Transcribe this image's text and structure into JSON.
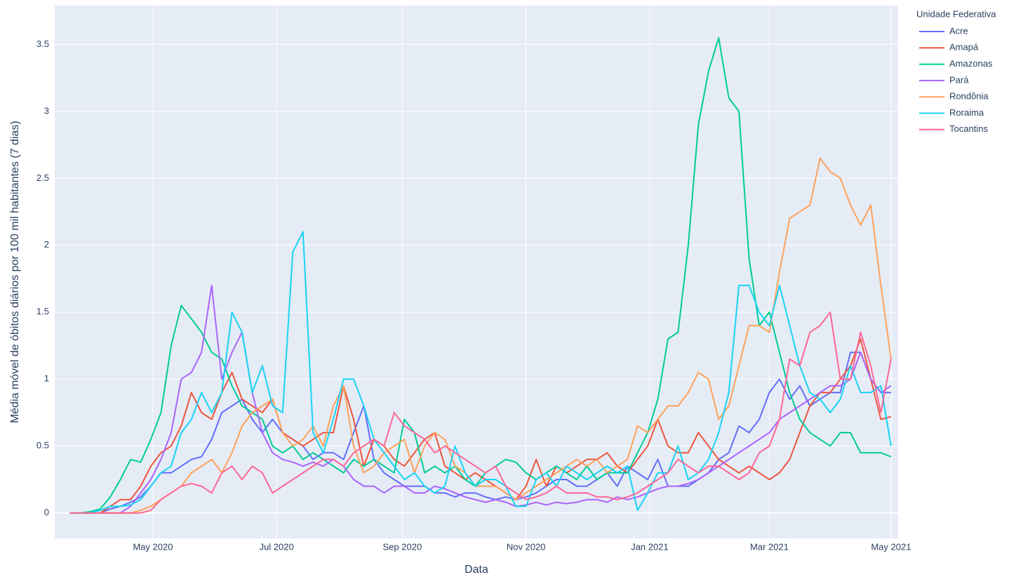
{
  "chart_data": {
    "type": "line",
    "x_label": "Data",
    "y_label": "Média móvel de óbitos diários por 100 mil habitantes (7 dias)",
    "legend_title": "Unidade Federativa",
    "legend": "right",
    "grid": true,
    "xlim": [
      72.6,
      488.5
    ],
    "xticks": [
      {
        "value": 121,
        "label": "May 2020"
      },
      {
        "value": 182,
        "label": "Jul 2020"
      },
      {
        "value": 244,
        "label": "Sep 2020"
      },
      {
        "value": 305,
        "label": "Nov 2020"
      },
      {
        "value": 366,
        "label": "Jan 2021"
      },
      {
        "value": 425,
        "label": "Mar 2021"
      },
      {
        "value": 485,
        "label": "May 2021"
      }
    ],
    "ylim": [
      -0.19,
      3.79
    ],
    "yticks": [
      0,
      0.5,
      1,
      1.5,
      2,
      2.5,
      3,
      3.5
    ],
    "x": [
      80,
      85,
      90,
      95,
      100,
      105,
      110,
      115,
      120,
      125,
      130,
      135,
      140,
      145,
      150,
      155,
      160,
      165,
      170,
      175,
      180,
      185,
      190,
      195,
      200,
      205,
      210,
      215,
      220,
      225,
      230,
      235,
      240,
      245,
      250,
      255,
      260,
      265,
      270,
      275,
      280,
      285,
      290,
      295,
      300,
      305,
      310,
      315,
      320,
      325,
      330,
      335,
      340,
      345,
      350,
      355,
      360,
      365,
      370,
      375,
      380,
      385,
      390,
      395,
      400,
      405,
      410,
      415,
      420,
      425,
      430,
      435,
      440,
      445,
      450,
      455,
      460,
      465,
      470,
      475,
      480,
      485
    ],
    "series": [
      {
        "name": "Acre",
        "color": "#636efa",
        "values": [
          0,
          0,
          0,
          0,
          0.03,
          0.05,
          0.08,
          0.12,
          0.2,
          0.3,
          0.3,
          0.35,
          0.4,
          0.42,
          0.55,
          0.75,
          0.8,
          0.85,
          0.7,
          0.6,
          0.7,
          0.6,
          0.55,
          0.5,
          0.4,
          0.45,
          0.45,
          0.4,
          0.6,
          0.8,
          0.4,
          0.3,
          0.25,
          0.2,
          0.2,
          0.2,
          0.15,
          0.15,
          0.12,
          0.15,
          0.15,
          0.12,
          0.1,
          0.12,
          0.1,
          0.12,
          0.15,
          0.2,
          0.25,
          0.25,
          0.2,
          0.2,
          0.25,
          0.3,
          0.2,
          0.35,
          0.3,
          0.25,
          0.4,
          0.2,
          0.2,
          0.2,
          0.25,
          0.3,
          0.4,
          0.45,
          0.65,
          0.6,
          0.7,
          0.9,
          1.0,
          0.85,
          0.95,
          0.8,
          0.85,
          0.9,
          0.9,
          1.2,
          1.2,
          1.0,
          0.9,
          0.9
        ]
      },
      {
        "name": "Amapá",
        "color": "#EF553B",
        "values": [
          0,
          0,
          0,
          0,
          0.05,
          0.1,
          0.1,
          0.2,
          0.35,
          0.45,
          0.5,
          0.65,
          0.9,
          0.75,
          0.7,
          0.9,
          1.05,
          0.85,
          0.8,
          0.75,
          0.85,
          0.6,
          0.55,
          0.5,
          0.55,
          0.6,
          0.6,
          0.95,
          0.7,
          0.35,
          0.55,
          0.5,
          0.4,
          0.35,
          0.45,
          0.55,
          0.6,
          0.35,
          0.3,
          0.25,
          0.3,
          0.25,
          0.2,
          0.15,
          0.1,
          0.2,
          0.4,
          0.2,
          0.35,
          0.3,
          0.35,
          0.4,
          0.4,
          0.45,
          0.35,
          0.3,
          0.4,
          0.5,
          0.7,
          0.5,
          0.45,
          0.45,
          0.6,
          0.5,
          0.4,
          0.35,
          0.3,
          0.35,
          0.3,
          0.25,
          0.3,
          0.4,
          0.6,
          0.8,
          0.9,
          0.9,
          1.0,
          1.1,
          1.3,
          1.0,
          0.7,
          0.72
        ]
      },
      {
        "name": "Amazonas",
        "color": "#00cc96",
        "values": [
          0,
          0,
          0.01,
          0.03,
          0.12,
          0.25,
          0.4,
          0.38,
          0.55,
          0.75,
          1.25,
          1.55,
          1.45,
          1.35,
          1.2,
          1.15,
          0.95,
          0.8,
          0.75,
          0.7,
          0.5,
          0.45,
          0.5,
          0.4,
          0.45,
          0.4,
          0.35,
          0.3,
          0.4,
          0.35,
          0.4,
          0.35,
          0.3,
          0.7,
          0.6,
          0.3,
          0.35,
          0.3,
          0.35,
          0.25,
          0.2,
          0.3,
          0.35,
          0.4,
          0.38,
          0.3,
          0.25,
          0.3,
          0.35,
          0.3,
          0.25,
          0.35,
          0.25,
          0.3,
          0.3,
          0.3,
          0.45,
          0.6,
          0.85,
          1.3,
          1.35,
          2.0,
          2.9,
          3.3,
          3.55,
          3.1,
          3.0,
          1.9,
          1.4,
          1.5,
          1.2,
          0.9,
          0.7,
          0.6,
          0.55,
          0.5,
          0.6,
          0.6,
          0.45,
          0.45,
          0.45,
          0.42
        ]
      },
      {
        "name": "Pará",
        "color": "#ab63fa",
        "values": [
          0,
          0,
          0,
          0,
          0,
          0,
          0.05,
          0.15,
          0.25,
          0.4,
          0.6,
          1.0,
          1.05,
          1.2,
          1.7,
          1.0,
          1.2,
          1.35,
          0.9,
          0.6,
          0.45,
          0.4,
          0.38,
          0.35,
          0.38,
          0.35,
          0.4,
          0.35,
          0.25,
          0.2,
          0.2,
          0.15,
          0.2,
          0.2,
          0.15,
          0.15,
          0.2,
          0.18,
          0.15,
          0.12,
          0.1,
          0.08,
          0.1,
          0.08,
          0.05,
          0.06,
          0.08,
          0.06,
          0.08,
          0.07,
          0.08,
          0.1,
          0.1,
          0.08,
          0.12,
          0.1,
          0.12,
          0.15,
          0.18,
          0.2,
          0.2,
          0.22,
          0.25,
          0.3,
          0.35,
          0.4,
          0.45,
          0.5,
          0.55,
          0.6,
          0.7,
          0.75,
          0.8,
          0.85,
          0.9,
          0.95,
          0.95,
          1.0,
          1.2,
          1.0,
          0.9,
          0.95
        ]
      },
      {
        "name": "Rondônia",
        "color": "#FFA15A",
        "values": [
          0,
          0,
          0,
          0,
          0,
          0,
          0,
          0.02,
          0.05,
          0.1,
          0.15,
          0.2,
          0.3,
          0.35,
          0.4,
          0.3,
          0.45,
          0.65,
          0.75,
          0.8,
          0.85,
          0.6,
          0.5,
          0.55,
          0.65,
          0.5,
          0.8,
          0.95,
          0.5,
          0.3,
          0.35,
          0.45,
          0.5,
          0.55,
          0.3,
          0.5,
          0.6,
          0.55,
          0.35,
          0.3,
          0.2,
          0.2,
          0.2,
          0.15,
          0.1,
          0.15,
          0.2,
          0.25,
          0.3,
          0.35,
          0.4,
          0.35,
          0.4,
          0.3,
          0.35,
          0.4,
          0.65,
          0.6,
          0.7,
          0.8,
          0.8,
          0.9,
          1.05,
          1.0,
          0.7,
          0.8,
          1.1,
          1.4,
          1.4,
          1.35,
          1.8,
          2.2,
          2.25,
          2.3,
          2.65,
          2.55,
          2.5,
          2.3,
          2.15,
          2.3,
          1.7,
          1.15
        ]
      },
      {
        "name": "Roraima",
        "color": "#19d3f3",
        "values": [
          0,
          0,
          0,
          0.02,
          0.05,
          0.05,
          0.06,
          0.1,
          0.2,
          0.3,
          0.35,
          0.6,
          0.7,
          0.9,
          0.75,
          0.9,
          1.5,
          1.35,
          0.9,
          1.1,
          0.8,
          0.75,
          1.95,
          2.1,
          0.6,
          0.45,
          0.7,
          1.0,
          1.0,
          0.8,
          0.55,
          0.45,
          0.35,
          0.25,
          0.3,
          0.2,
          0.15,
          0.2,
          0.5,
          0.3,
          0.2,
          0.25,
          0.25,
          0.2,
          0.05,
          0.05,
          0.25,
          0.3,
          0.2,
          0.35,
          0.3,
          0.25,
          0.3,
          0.35,
          0.3,
          0.35,
          0.02,
          0.15,
          0.3,
          0.3,
          0.5,
          0.25,
          0.3,
          0.4,
          0.6,
          0.9,
          1.7,
          1.7,
          1.5,
          1.4,
          1.7,
          1.4,
          1.1,
          0.9,
          0.85,
          0.75,
          0.85,
          1.1,
          0.9,
          0.9,
          0.95,
          0.5
        ]
      },
      {
        "name": "Tocantins",
        "color": "#FF6692",
        "values": [
          0,
          0,
          0,
          0,
          0,
          0,
          0,
          0,
          0.02,
          0.1,
          0.15,
          0.2,
          0.22,
          0.2,
          0.15,
          0.3,
          0.35,
          0.25,
          0.35,
          0.3,
          0.15,
          0.2,
          0.25,
          0.3,
          0.35,
          0.4,
          0.4,
          0.35,
          0.45,
          0.5,
          0.55,
          0.5,
          0.75,
          0.65,
          0.6,
          0.55,
          0.45,
          0.5,
          0.45,
          0.4,
          0.35,
          0.3,
          0.35,
          0.2,
          0.15,
          0.1,
          0.12,
          0.15,
          0.2,
          0.15,
          0.15,
          0.15,
          0.12,
          0.12,
          0.1,
          0.12,
          0.15,
          0.2,
          0.25,
          0.3,
          0.4,
          0.35,
          0.3,
          0.35,
          0.35,
          0.3,
          0.25,
          0.3,
          0.45,
          0.5,
          0.7,
          1.15,
          1.1,
          1.35,
          1.4,
          1.5,
          1.0,
          1.0,
          1.35,
          1.1,
          0.75,
          1.15
        ]
      }
    ]
  }
}
